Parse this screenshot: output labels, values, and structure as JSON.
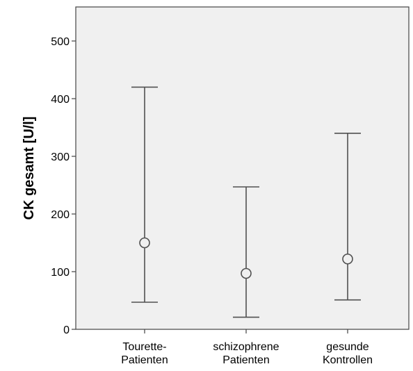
{
  "chart_data": {
    "type": "errorbar",
    "ylabel": "CK gesamt [U/l]",
    "xlabel": "",
    "ylim": [
      0,
      555
    ],
    "yticks": [
      0,
      100,
      200,
      300,
      400,
      500
    ],
    "ytick_labels": [
      "0",
      "100",
      "200",
      "300",
      "400",
      "500"
    ],
    "categories": [
      [
        "Tourette-",
        "Patienten"
      ],
      [
        "schizophrene",
        "Patienten"
      ],
      [
        "gesunde",
        "Kontrollen"
      ]
    ],
    "series": [
      {
        "values": [
          {
            "center": 150,
            "low": 47,
            "high": 420
          },
          {
            "center": 97,
            "low": 21,
            "high": 247
          },
          {
            "center": 122,
            "low": 51,
            "high": 340
          }
        ]
      }
    ],
    "grid": false,
    "colors": {
      "plot_background": "#f0f0f0",
      "frame": "#444444",
      "errorbar": "#505050",
      "marker_edge": "#505050"
    }
  }
}
